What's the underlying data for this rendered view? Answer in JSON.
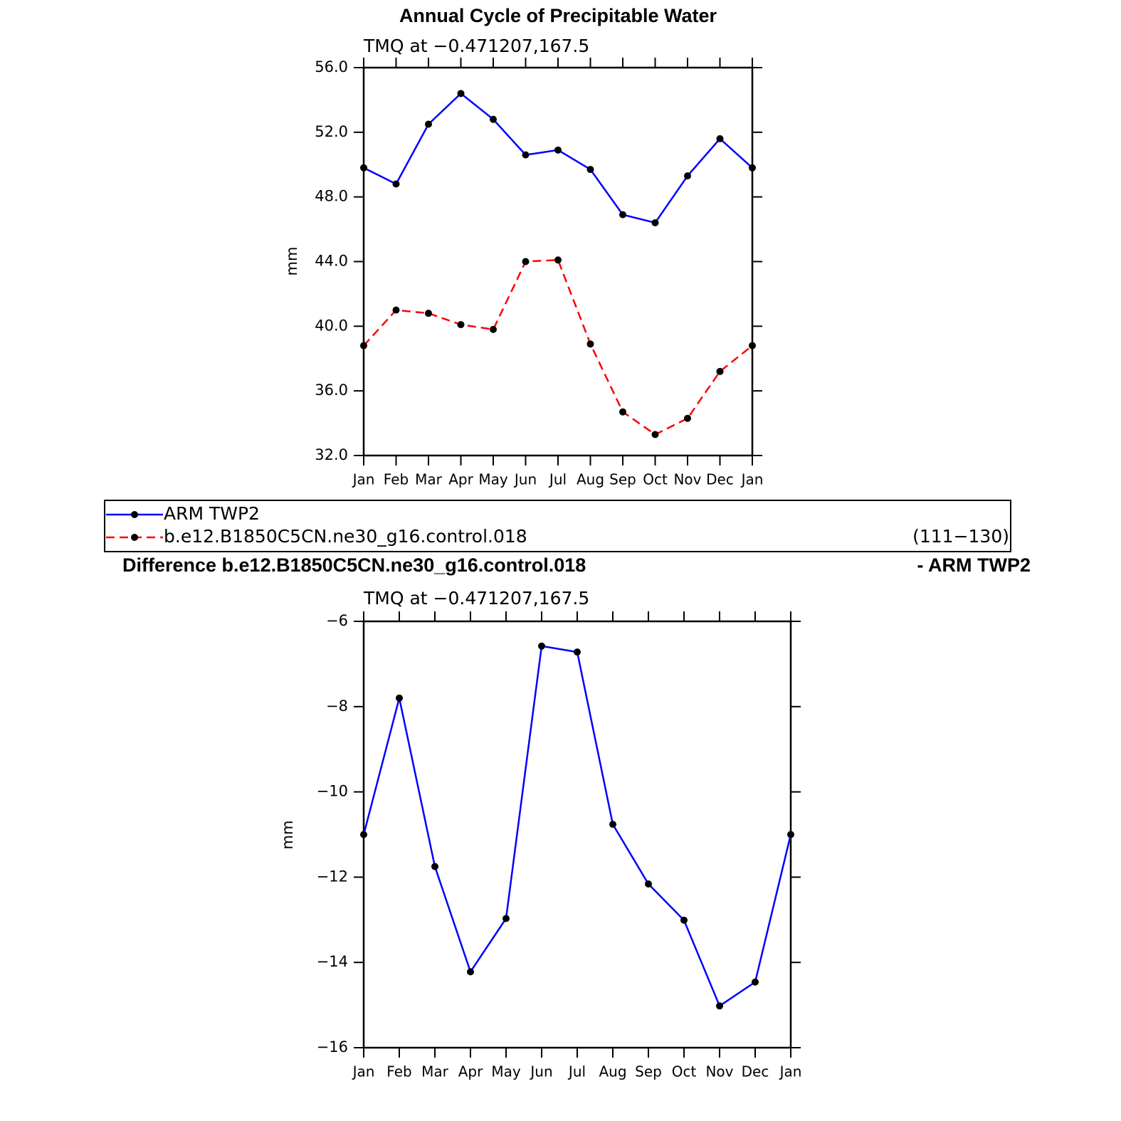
{
  "chart_data": [
    {
      "type": "line",
      "title": "Annual Cycle of Precipitable Water",
      "subtitle": "TMQ at −0.471207,167.5",
      "ylabel": "mm",
      "categories": [
        "Jan",
        "Feb",
        "Mar",
        "Apr",
        "May",
        "Jun",
        "Jul",
        "Aug",
        "Sep",
        "Oct",
        "Nov",
        "Dec",
        "Jan"
      ],
      "ylim": [
        32,
        56
      ],
      "yticks": [
        {
          "value": 32,
          "label": "32.0"
        },
        {
          "value": 36,
          "label": "36.0"
        },
        {
          "value": 40,
          "label": "40.0"
        },
        {
          "value": 44,
          "label": "44.0"
        },
        {
          "value": 48,
          "label": "48.0"
        },
        {
          "value": 52,
          "label": "52.0"
        },
        {
          "value": 56,
          "label": "56.0"
        }
      ],
      "series": [
        {
          "name": "ARM TWP2",
          "color": "#0000ff",
          "dash": false,
          "values": [
            49.8,
            48.8,
            52.5,
            54.4,
            52.8,
            50.6,
            50.9,
            49.7,
            46.9,
            46.4,
            49.3,
            51.6,
            49.8
          ]
        },
        {
          "name": "b.e12.B1850C5CN.ne30_g16.control.018",
          "color": "#ff0000",
          "dash": true,
          "values": [
            38.8,
            41.0,
            40.8,
            40.1,
            39.8,
            44.0,
            44.1,
            38.9,
            34.7,
            33.3,
            34.3,
            37.2,
            38.8
          ]
        }
      ],
      "marker_color": "#000000",
      "legend_note": "(111−130)"
    },
    {
      "type": "line",
      "title": "Difference b.e12.B1850C5CN.ne30_g16.control.018",
      "title_right": "- ARM TWP2",
      "subtitle": "TMQ at −0.471207,167.5",
      "ylabel": "mm",
      "categories": [
        "Jan",
        "Feb",
        "Mar",
        "Apr",
        "May",
        "Jun",
        "Jul",
        "Aug",
        "Sep",
        "Oct",
        "Nov",
        "Dec",
        "Jan"
      ],
      "ylim": [
        -16,
        -6
      ],
      "yticks": [
        {
          "value": -16,
          "label": "−16"
        },
        {
          "value": -14,
          "label": "−14"
        },
        {
          "value": -12,
          "label": "−12"
        },
        {
          "value": -10,
          "label": "−10"
        },
        {
          "value": -8,
          "label": "−8"
        },
        {
          "value": -6,
          "label": "−6"
        }
      ],
      "series": [
        {
          "color": "#0000ff",
          "dash": false,
          "values": [
            -11.0,
            -7.8,
            -11.75,
            -14.22,
            -12.97,
            -6.58,
            -6.72,
            -10.76,
            -12.16,
            -13.01,
            -15.02,
            -14.46,
            -11.0
          ]
        }
      ],
      "marker_color": "#000000"
    }
  ]
}
